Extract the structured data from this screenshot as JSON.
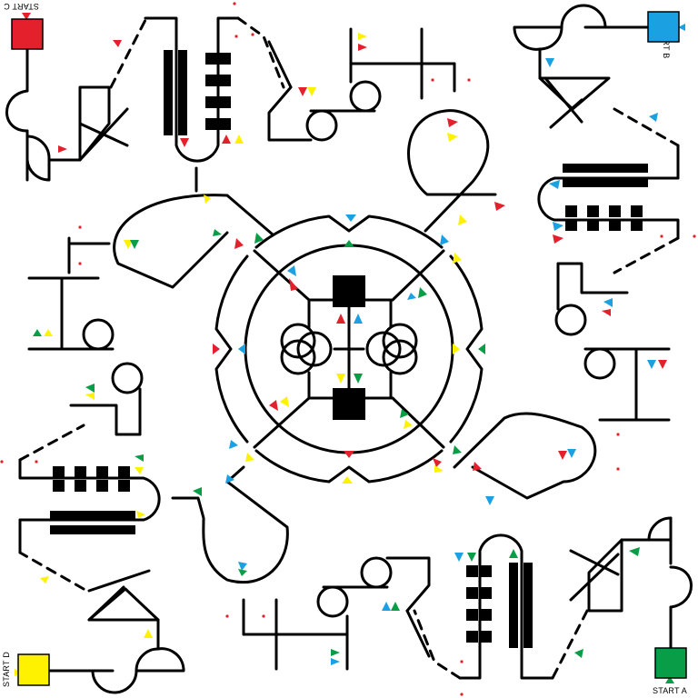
{
  "title": "",
  "palette": {
    "red": "#e3202b",
    "blue": "#1ba0e2",
    "green": "#0a9d48",
    "yellow": "#fff200",
    "line": "#000000"
  },
  "starts": [
    {
      "id": "a",
      "label": "START A",
      "color": "#0a9d48",
      "corner": "bottom-right"
    },
    {
      "id": "b",
      "label": "START B",
      "color": "#1ba0e2",
      "corner": "top-right"
    },
    {
      "id": "c",
      "label": "START C",
      "color": "#e3202b",
      "corner": "top-left"
    },
    {
      "id": "d",
      "label": "START D",
      "color": "#fff200",
      "corner": "bottom-left"
    }
  ],
  "symbols": {
    "center": "two-hub-transformer",
    "fixtures": [
      "coil-stack",
      "block-column",
      "pulley-circle",
      "truss-triangle",
      "semicircle-mount"
    ]
  }
}
